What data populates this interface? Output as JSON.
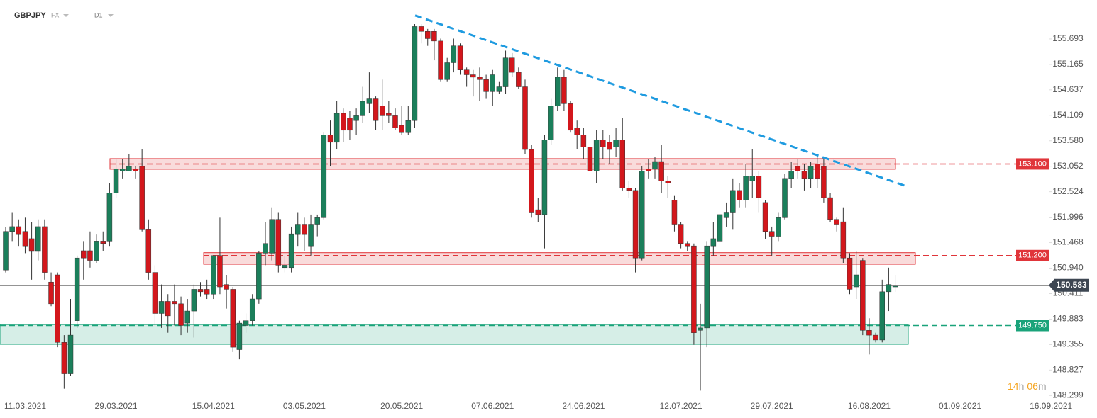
{
  "chart_data": {
    "type": "candlestick",
    "symbol": "GBPJPY",
    "market": "FX",
    "timeframe": "D1",
    "countdown": {
      "hours": "14",
      "h": "h",
      "minutes": "06",
      "m": "m"
    },
    "up_color": "#1b7f5b",
    "down_color": "#d3171c",
    "categories": [
      null,
      null,
      null,
      "11.03.2021",
      null,
      null,
      null,
      null,
      null,
      null,
      null,
      null,
      null,
      null,
      null,
      null,
      null,
      "29.03.2021",
      null,
      null,
      null,
      null,
      null,
      null,
      null,
      null,
      null,
      null,
      null,
      null,
      null,
      null,
      "15.04.2021",
      null,
      null,
      null,
      null,
      null,
      null,
      null,
      null,
      null,
      null,
      null,
      null,
      null,
      "03.05.2021",
      null,
      null,
      null,
      null,
      null,
      null,
      null,
      null,
      null,
      null,
      null,
      null,
      null,
      null,
      "20.05.2021",
      null,
      null,
      null,
      null,
      null,
      null,
      null,
      null,
      null,
      null,
      null,
      null,
      null,
      "07.06.2021",
      null,
      null,
      null,
      null,
      null,
      null,
      null,
      null,
      null,
      null,
      null,
      null,
      null,
      "24.06.2021",
      null,
      null,
      null,
      null,
      null,
      null,
      null,
      null,
      null,
      null,
      null,
      null,
      null,
      null,
      "12.07.2021",
      null,
      null,
      null,
      null,
      null,
      null,
      null,
      null,
      null,
      null,
      null,
      null,
      null,
      "29.07.2021",
      null,
      null,
      null,
      null,
      null,
      null,
      null,
      null,
      null,
      null,
      null,
      null,
      null,
      null,
      "16.08.2021",
      null,
      null,
      null,
      null,
      null,
      null,
      null,
      null,
      null,
      null,
      null,
      null,
      null,
      "01.09.2021",
      null,
      null,
      null,
      null,
      null,
      null,
      null,
      null,
      null,
      null,
      null,
      null,
      null,
      "16.09.2021"
    ],
    "open": [
      150.9,
      151.7,
      151.8,
      151.7,
      151.55,
      151.3,
      151.8,
      150.65,
      150.8,
      149.4,
      148.75,
      149.85,
      151.3,
      151.3,
      151.1,
      151.5,
      151.5,
      152.5,
      152.95,
      152.95,
      153.0,
      153.05,
      151.75,
      150.85,
      150.0,
      150.25,
      150.25,
      150.2,
      149.8,
      150.05,
      150.5,
      150.5,
      150.4,
      151.2,
      150.6,
      150.5,
      149.25,
      149.75,
      149.85,
      150.3,
      151.25,
      151.25,
      151.95,
      150.95,
      150.95,
      151.65,
      151.85,
      151.4,
      151.85,
      152.0,
      153.7,
      153.55,
      154.15,
      154.05,
      154.0,
      154.1,
      154.35,
      154.45,
      154.3,
      154.15,
      154.1,
      153.9,
      153.75,
      154.0,
      155.95,
      155.85,
      155.85,
      155.65,
      154.85,
      155.2,
      155.55,
      155.05,
      154.95,
      154.9,
      154.85,
      154.6,
      154.6,
      154.7,
      155.3,
      155.0,
      154.7,
      153.4,
      152.15,
      152.05,
      153.6,
      154.3,
      154.9,
      154.35,
      153.85,
      153.7,
      153.45,
      152.95,
      153.6,
      153.55,
      153.45,
      153.6,
      152.6,
      152.55,
      151.15,
      153.0,
      153.0,
      153.15,
      152.75,
      152.35,
      151.85,
      151.45,
      151.4,
      149.65,
      149.7,
      151.4,
      151.5,
      152.0,
      152.1,
      152.55,
      152.35,
      152.75,
      152.85,
      152.3,
      151.7,
      151.6,
      152.0,
      152.8,
      153.05,
      152.95,
      152.8,
      153.1,
      153.05,
      152.4,
      151.95,
      151.9,
      151.15,
      150.55,
      151.1,
      149.65,
      149.55,
      149.45,
      150.45,
      150.55,
      null,
      null,
      null,
      null,
      null,
      null,
      null,
      null,
      null,
      null,
      null,
      null,
      null,
      null,
      null,
      null,
      null,
      null,
      null,
      null,
      null,
      null,
      null,
      null
    ],
    "high": [
      151.8,
      152.1,
      151.95,
      152.0,
      151.9,
      151.95,
      151.95,
      150.85,
      150.85,
      149.55,
      150.3,
      151.2,
      151.5,
      151.7,
      151.65,
      151.7,
      152.7,
      153.2,
      153.2,
      153.3,
      153.05,
      153.4,
      151.95,
      151.0,
      150.6,
      150.4,
      150.6,
      150.35,
      150.3,
      150.6,
      150.65,
      150.7,
      151.2,
      152.0,
      150.8,
      150.55,
      149.85,
      150.0,
      150.4,
      151.3,
      151.9,
      152.2,
      152.1,
      151.2,
      151.8,
      152.1,
      152.0,
      152.05,
      152.05,
      153.75,
      154.0,
      154.4,
      154.25,
      154.2,
      154.25,
      154.7,
      155.0,
      154.5,
      154.85,
      154.4,
      154.25,
      154.3,
      154.3,
      156.0,
      156.0,
      155.9,
      155.9,
      155.7,
      155.3,
      155.7,
      155.6,
      155.1,
      155.05,
      155.1,
      154.95,
      155.05,
      154.8,
      155.45,
      155.4,
      155.1,
      154.85,
      153.5,
      152.4,
      153.7,
      154.45,
      155.1,
      155.05,
      154.4,
      154.0,
      153.85,
      153.55,
      153.8,
      153.8,
      153.7,
      153.85,
      154.05,
      152.75,
      152.6,
      153.05,
      153.2,
      153.25,
      153.5,
      152.85,
      152.45,
      151.9,
      151.5,
      151.45,
      150.2,
      151.5,
      151.9,
      152.1,
      152.3,
      152.8,
      152.7,
      153.1,
      153.4,
      152.95,
      152.35,
      151.8,
      152.1,
      152.9,
      153.15,
      153.2,
      153.1,
      153.15,
      153.3,
      153.2,
      152.5,
      152.0,
      152.2,
      151.25,
      151.3,
      151.15,
      149.9,
      149.6,
      150.7,
      150.95,
      150.8,
      null,
      null,
      null,
      null,
      null,
      null,
      null,
      null,
      null,
      null,
      null,
      null,
      null,
      null,
      null,
      null,
      null,
      null,
      null,
      null,
      null,
      null,
      null,
      null
    ],
    "low": [
      150.85,
      151.5,
      151.4,
      151.25,
      150.7,
      151.1,
      150.7,
      150.15,
      149.3,
      148.44,
      148.7,
      149.7,
      150.7,
      150.95,
      151.05,
      151.3,
      151.4,
      152.4,
      152.8,
      152.95,
      152.8,
      151.7,
      150.7,
      149.75,
      149.7,
      149.6,
      149.75,
      149.55,
      149.6,
      149.5,
      150.35,
      150.3,
      150.3,
      150.4,
      150.1,
      149.2,
      149.05,
      149.6,
      149.75,
      150.2,
      151.0,
      151.1,
      150.85,
      150.85,
      150.85,
      151.4,
      151.3,
      151.2,
      151.6,
      151.95,
      153.05,
      153.4,
      153.55,
      153.6,
      153.7,
      153.95,
      154.15,
      153.8,
      153.8,
      153.95,
      153.8,
      153.7,
      153.7,
      153.85,
      155.6,
      155.55,
      155.25,
      154.8,
      154.8,
      155.0,
      154.95,
      154.7,
      154.5,
      154.4,
      154.45,
      154.3,
      154.55,
      154.55,
      154.9,
      154.65,
      153.3,
      152.0,
      151.9,
      151.35,
      153.5,
      154.2,
      154.2,
      153.75,
      153.4,
      153.2,
      152.6,
      152.7,
      153.2,
      153.1,
      153.25,
      152.55,
      152.4,
      150.85,
      151.1,
      152.8,
      152.8,
      152.5,
      152.4,
      151.7,
      151.35,
      151.3,
      149.35,
      148.4,
      149.3,
      151.2,
      151.4,
      151.8,
      151.75,
      152.2,
      152.2,
      152.4,
      152.1,
      151.55,
      151.2,
      151.5,
      151.95,
      152.6,
      152.8,
      152.55,
      152.6,
      152.6,
      152.3,
      151.9,
      151.7,
      151.05,
      150.4,
      150.3,
      149.55,
      149.15,
      149.4,
      149.4,
      150.05,
      150.45,
      null,
      null,
      null,
      null,
      null,
      null,
      null,
      null,
      null,
      null,
      null,
      null,
      null,
      null,
      null,
      null,
      null,
      null,
      null,
      null,
      null,
      null,
      null,
      null
    ],
    "close": [
      151.7,
      151.8,
      151.65,
      151.4,
      151.3,
      151.8,
      150.85,
      150.2,
      149.4,
      148.75,
      149.55,
      151.15,
      151.15,
      151.1,
      151.5,
      151.45,
      152.5,
      153.0,
      153.0,
      153.05,
      152.95,
      151.75,
      150.85,
      150.0,
      150.25,
      149.95,
      150.2,
      149.75,
      150.05,
      150.5,
      150.45,
      150.4,
      151.2,
      150.55,
      150.5,
      149.3,
      149.8,
      149.85,
      150.3,
      151.25,
      151.45,
      151.95,
      151.0,
      151.0,
      151.65,
      151.85,
      151.65,
      151.85,
      152.0,
      153.7,
      153.55,
      154.15,
      153.8,
      153.8,
      154.1,
      154.4,
      154.45,
      154.0,
      154.1,
      154.1,
      153.85,
      153.75,
      154.0,
      155.95,
      155.85,
      155.7,
      155.65,
      154.85,
      155.2,
      155.55,
      155.05,
      154.95,
      154.9,
      154.85,
      154.6,
      154.95,
      154.7,
      155.3,
      155.0,
      154.7,
      153.4,
      152.1,
      152.05,
      153.6,
      154.3,
      154.9,
      154.35,
      153.8,
      153.7,
      153.45,
      152.95,
      153.6,
      153.45,
      153.4,
      153.6,
      152.6,
      152.55,
      151.15,
      152.95,
      152.95,
      153.15,
      152.75,
      152.7,
      151.85,
      151.45,
      151.4,
      149.6,
      149.7,
      151.4,
      151.55,
      152.05,
      152.1,
      152.55,
      152.35,
      152.85,
      152.85,
      152.4,
      151.7,
      151.6,
      152.0,
      152.8,
      152.95,
      152.95,
      152.8,
      153.05,
      152.8,
      152.4,
      151.95,
      151.85,
      151.15,
      150.5,
      150.8,
      149.65,
      149.55,
      149.45,
      150.45,
      150.6,
      150.583,
      null,
      null,
      null,
      null,
      null,
      null,
      null,
      null,
      null,
      null,
      null,
      null,
      null,
      null,
      null,
      null,
      null,
      null,
      null,
      null,
      null,
      null,
      null,
      null
    ],
    "ylim": [
      148.2,
      156.5
    ],
    "yticks": [
      155.693,
      155.165,
      154.637,
      154.109,
      {
        "value": 153.58,
        "label": "153.580"
      },
      153.052,
      152.524,
      151.996,
      151.468,
      {
        "value": 150.94,
        "label": "150.940"
      },
      150.411,
      149.883,
      149.355,
      148.827,
      148.299
    ],
    "levels": [
      {
        "value": 153.1,
        "label": "153.100",
        "color": "#e0353a",
        "zone": [
          152.99,
          153.21
        ]
      },
      {
        "value": 151.2,
        "label": "151.200",
        "color": "#e0353a",
        "zone": [
          151.02,
          151.26
        ]
      },
      {
        "value": 149.75,
        "label": "149.750",
        "color": "#1aa37a",
        "zone": [
          149.36,
          149.77
        ]
      }
    ],
    "trendline": {
      "color": "#1f9be0",
      "values": [
        156.18,
        152.65
      ]
    },
    "current_price": 150.583
  }
}
